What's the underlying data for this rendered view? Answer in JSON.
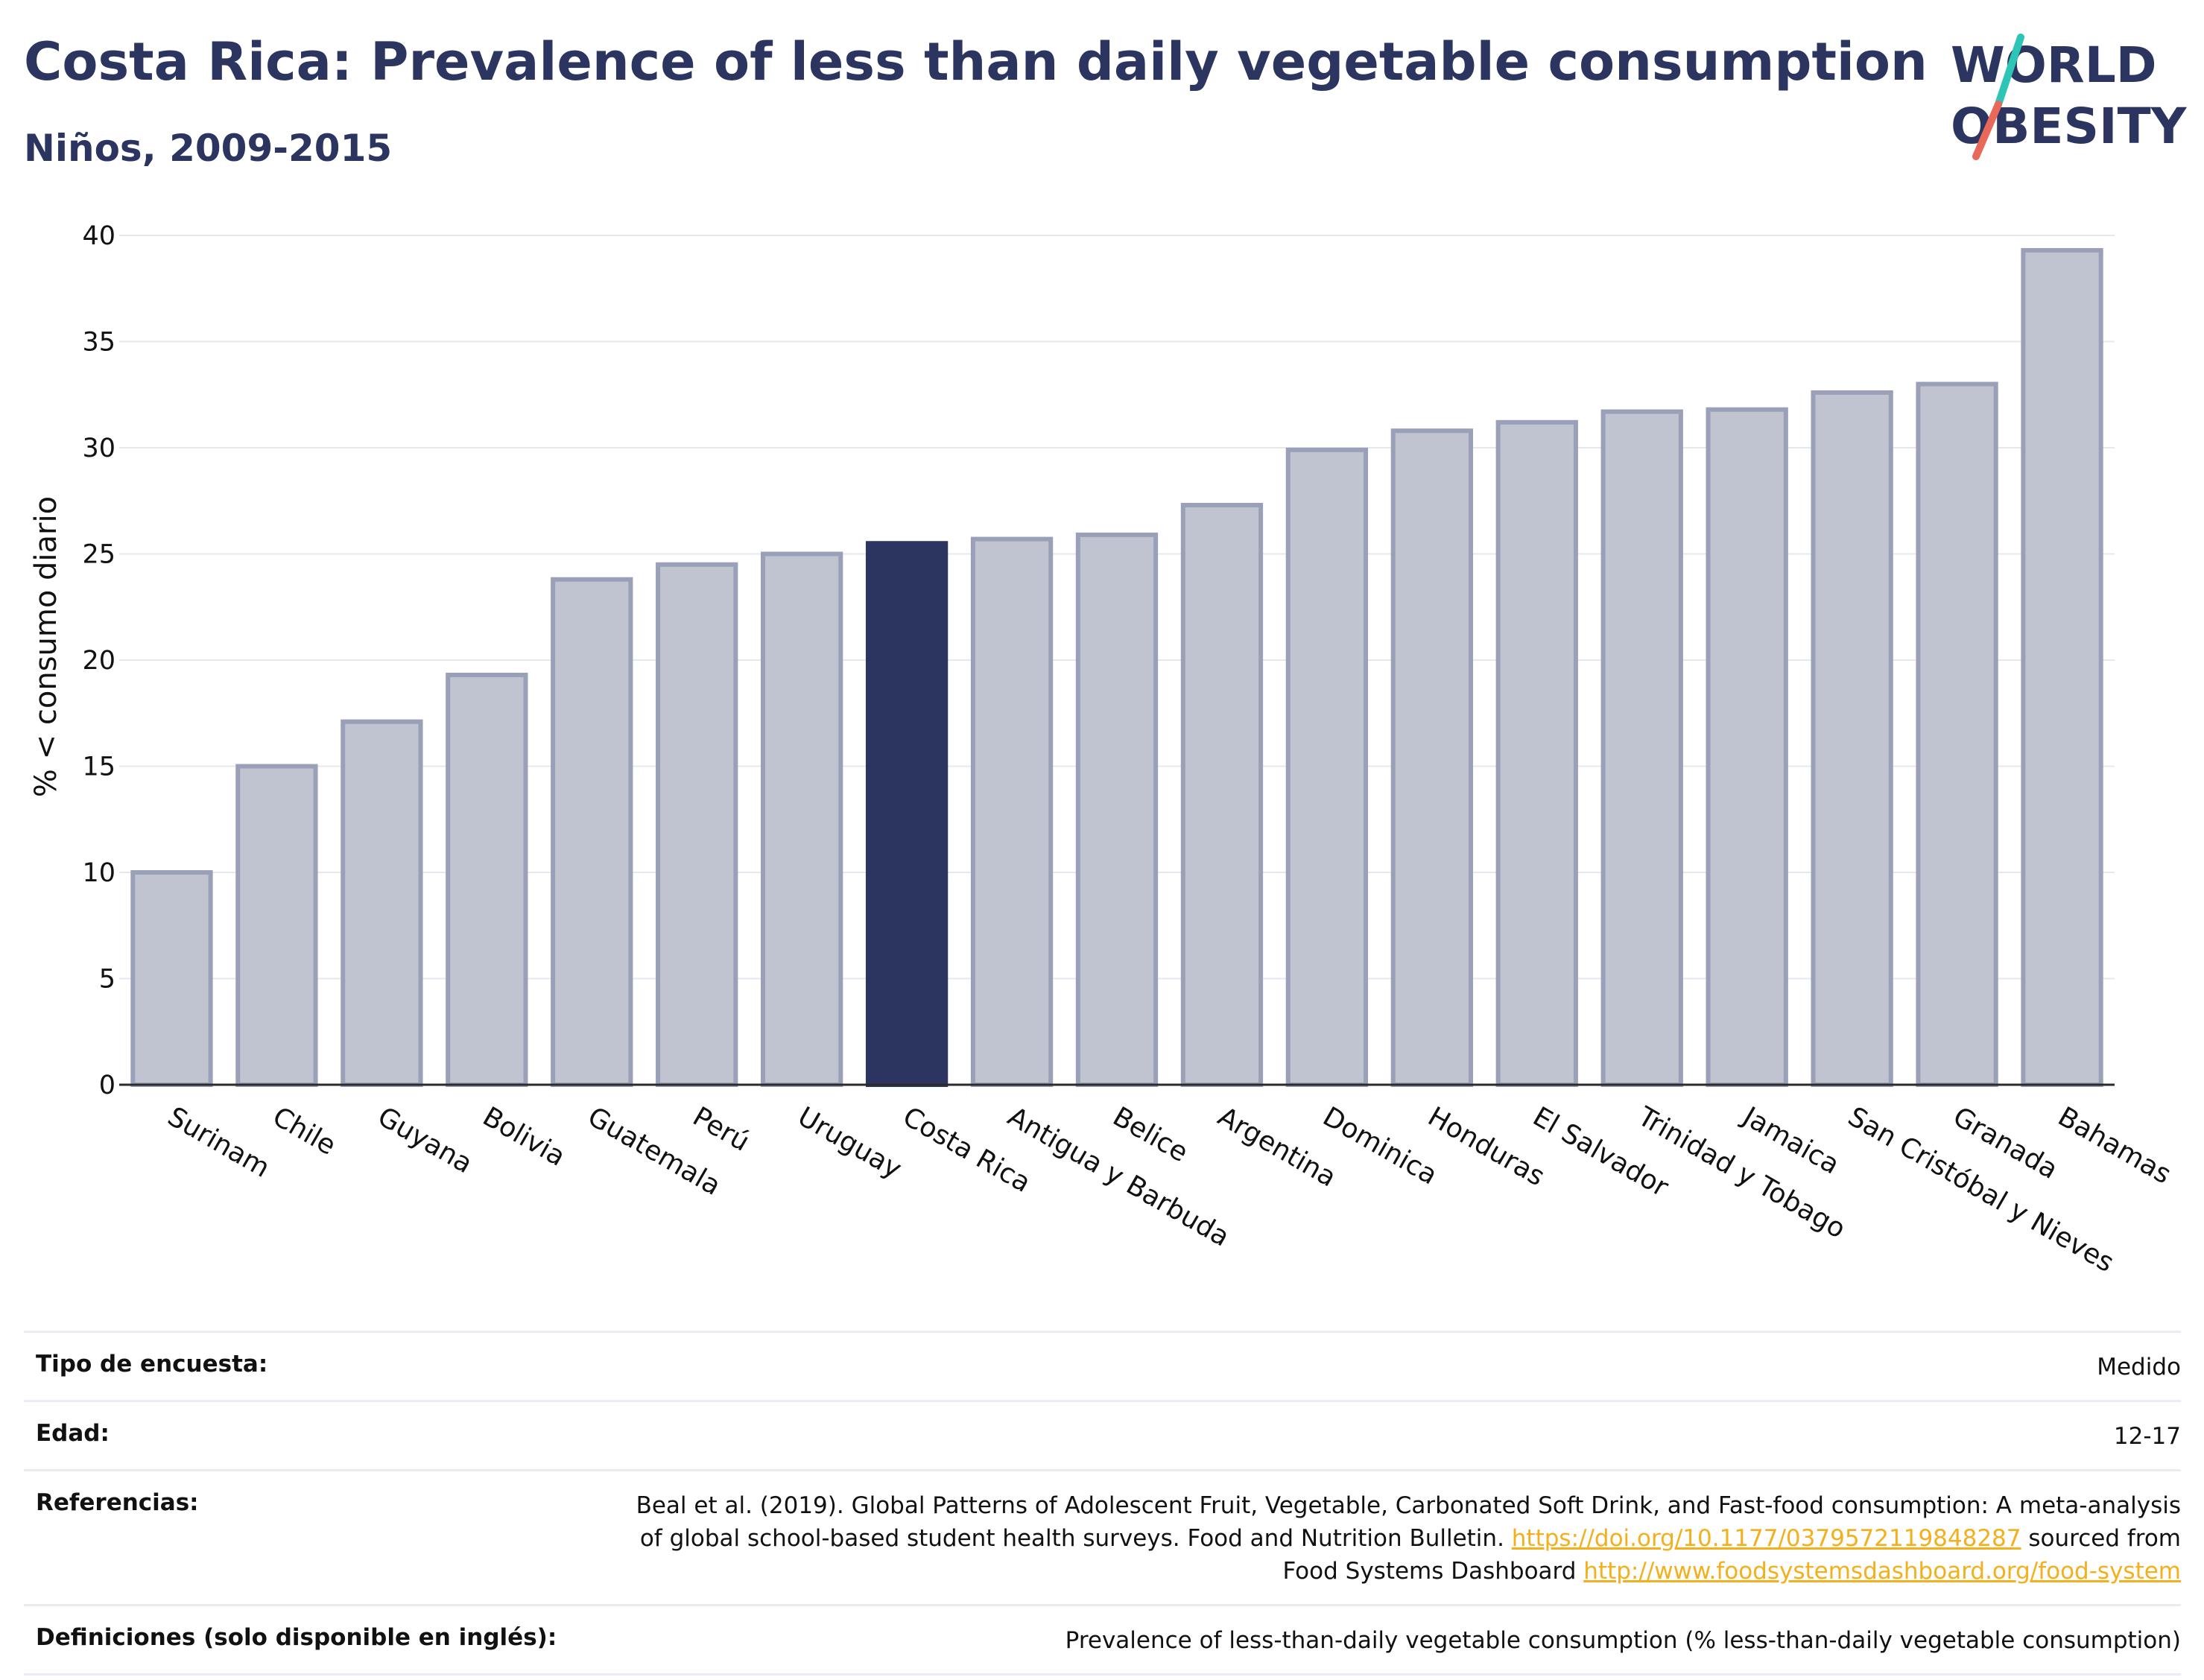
{
  "header": {
    "title": "Costa Rica: Prevalence of less than daily vegetable consumption",
    "subtitle": "Niños, 2009-2015"
  },
  "logo": {
    "line1": "WORLD",
    "line2": "OBESITY",
    "slash_colors": [
      "#2ec4b6",
      "#e8685a"
    ]
  },
  "colors": {
    "bar": "#c0c3d0",
    "bar_border": "#9aa0b8",
    "highlight": "#2b3560",
    "link": "#f3b01c",
    "text": "#2b3560"
  },
  "chart_data": {
    "type": "bar",
    "categories": [
      "Surinam",
      "Chile",
      "Guyana",
      "Bolivia",
      "Guatemala",
      "Perú",
      "Uruguay",
      "Costa Rica",
      "Antigua y Barbuda",
      "Belice",
      "Argentina",
      "Dominica",
      "Honduras",
      "El Salvador",
      "Trinidad y Tobago",
      "Jamaica",
      "San Cristóbal y Nieves",
      "Granada",
      "Bahamas"
    ],
    "values": [
      10.0,
      15.0,
      17.1,
      19.3,
      23.8,
      24.5,
      25.0,
      25.5,
      25.7,
      25.9,
      27.3,
      29.9,
      30.8,
      31.2,
      31.7,
      31.8,
      32.6,
      33.0,
      39.3
    ],
    "highlight": "Costa Rica",
    "title": "Costa Rica: Prevalence of less than daily vegetable consumption",
    "subtitle": "Niños, 2009-2015",
    "xlabel": "",
    "ylabel": "% < consumo diario",
    "ylim": [
      0,
      40
    ],
    "yticks": [
      0,
      5,
      10,
      15,
      20,
      25,
      30,
      35,
      40
    ],
    "grid": true
  },
  "info": {
    "survey_type": {
      "label": "Tipo de encuesta:",
      "value": "Medido"
    },
    "age": {
      "label": "Edad:",
      "value": "12-17"
    },
    "references": {
      "label": "Referencias:",
      "text1": "Beal et al. (2019). Global Patterns of Adolescent Fruit, Vegetable, Carbonated Soft Drink, and Fast-food consumption: A meta-analysis of global school-based student health surveys. Food and Nutrition Bulletin.",
      "link1": "https://doi.org/10.1177/0379572119848287",
      "text2": "sourced from Food Systems Dashboard",
      "link2": "http://www.foodsystemsdashboard.org/food-system"
    },
    "definitions": {
      "label": "Definiciones (solo disponible en inglés):",
      "value": "Prevalence of less-than-daily vegetable consumption (% less-than-daily vegetable consumption)"
    }
  }
}
